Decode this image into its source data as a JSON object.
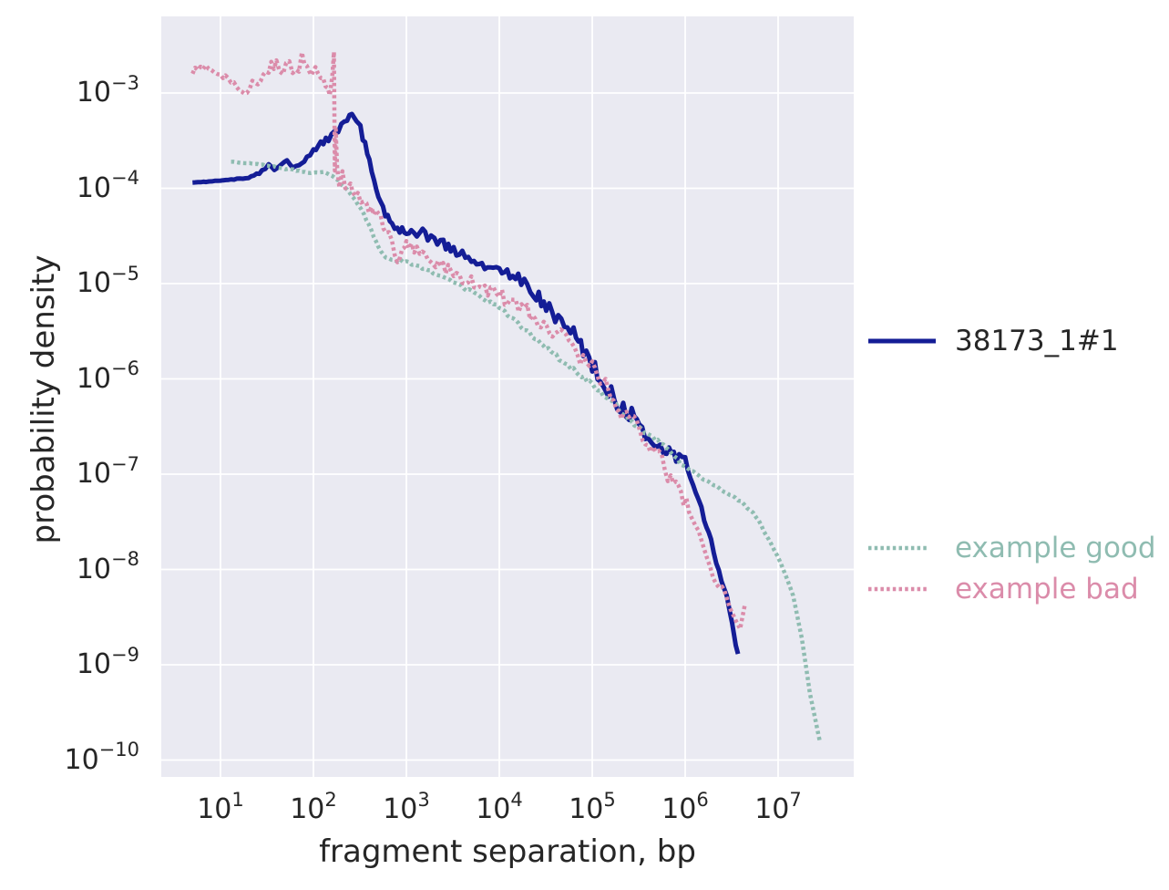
{
  "figure": {
    "xlabel": "fragment separation, bp",
    "ylabel": "probability density",
    "tick_base": "10",
    "background": "#ffffff",
    "plot_background": "#eaeaf2",
    "grid_color": "#ffffff",
    "text_color": "#262626"
  },
  "legend_main": {
    "label": "38173_1#1",
    "color": "#141d96",
    "style": "solid"
  },
  "legend_examples": [
    {
      "label": "example good",
      "color": "#8fbcb1",
      "style": "dotted"
    },
    {
      "label": "example bad",
      "color": "#db8caa",
      "style": "dotted"
    }
  ],
  "chart_data": {
    "type": "line",
    "xscale": "log",
    "yscale": "log",
    "xlabel": "fragment separation, bp",
    "ylabel": "probability density",
    "xlim": [
      2.3,
      65000000
    ],
    "ylim": [
      6.6e-11,
      0.0064
    ],
    "grid": true,
    "legend_position": "right",
    "x_tick_exponents": [
      1,
      2,
      3,
      4,
      5,
      6,
      7
    ],
    "y_tick_exponents": [
      -3,
      -4,
      -5,
      -6,
      -7,
      -8,
      -9,
      -10
    ],
    "series": [
      {
        "name": "38173_1#1",
        "color": "#141d96",
        "style": "solid",
        "line_width": 5,
        "points": [
          [
            5,
            0.000115,
            0
          ],
          [
            7,
            0.000117,
            0.005
          ],
          [
            10,
            0.00012,
            0.005
          ],
          [
            14,
            0.000125,
            0.01
          ],
          [
            20,
            0.00013,
            0.01
          ],
          [
            28,
            0.00015,
            0.02
          ],
          [
            33,
            0.000175,
            0.02
          ],
          [
            38,
            0.000155,
            0.02
          ],
          [
            45,
            0.000185,
            0.02
          ],
          [
            52,
            0.000195,
            0.02
          ],
          [
            60,
            0.00016,
            0.02
          ],
          [
            70,
            0.00018,
            0.02
          ],
          [
            85,
            0.00021,
            0.03
          ],
          [
            100,
            0.00025,
            0.03
          ],
          [
            120,
            0.0003,
            0.04
          ],
          [
            145,
            0.00034,
            0.05
          ],
          [
            170,
            0.00039,
            0.05
          ],
          [
            200,
            0.00046,
            0.06
          ],
          [
            230,
            0.00053,
            0.05
          ],
          [
            260,
            0.00055,
            0.05
          ],
          [
            290,
            0.00049,
            0.05
          ],
          [
            320,
            0.00042,
            0.04
          ],
          [
            360,
            0.00029,
            0.04
          ],
          [
            400,
            0.00019,
            0.03
          ],
          [
            450,
            0.00012,
            0.03
          ],
          [
            500,
            8.5e-05,
            0.03
          ],
          [
            560,
            6.2e-05,
            0.03
          ],
          [
            630,
            4.9e-05,
            0.04
          ],
          [
            700,
            4.3e-05,
            0.04
          ],
          [
            800,
            3.9e-05,
            0.05
          ],
          [
            900,
            3.7e-05,
            0.05
          ],
          [
            1000,
            3.6e-05,
            0.05
          ],
          [
            1200,
            3.4e-05,
            0.06
          ],
          [
            1400,
            3.5e-05,
            0.06
          ],
          [
            1700,
            3.1e-05,
            0.05
          ],
          [
            2000,
            2.9e-05,
            0.05
          ],
          [
            2500,
            2.6e-05,
            0.05
          ],
          [
            3000,
            2.3e-05,
            0.05
          ],
          [
            4000,
            2e-05,
            0.05
          ],
          [
            5000,
            1.75e-05,
            0.05
          ],
          [
            6500,
            1.6e-05,
            0.05
          ],
          [
            8000,
            1.55e-05,
            0.05
          ],
          [
            10000,
            1.5e-05,
            0.05
          ],
          [
            13000,
            1.3e-05,
            0.06
          ],
          [
            16000,
            1.15e-05,
            0.06
          ],
          [
            20000,
            1e-05,
            0.06
          ],
          [
            25000,
            7.5e-06,
            0.07
          ],
          [
            32000,
            5.8e-06,
            0.07
          ],
          [
            40000,
            4.4e-06,
            0.07
          ],
          [
            50000,
            3.6e-06,
            0.08
          ],
          [
            63000,
            3e-06,
            0.08
          ],
          [
            80000,
            2e-06,
            0.08
          ],
          [
            100000,
            1.4e-06,
            0.08
          ],
          [
            130000,
            9e-07,
            0.09
          ],
          [
            160000,
            6.8e-07,
            0.09
          ],
          [
            200000,
            5.2e-07,
            0.09
          ],
          [
            250000,
            4.4e-07,
            0.09
          ],
          [
            320000,
            3.2e-07,
            0.08
          ],
          [
            400000,
            2.6e-07,
            0.08
          ],
          [
            500000,
            1.9e-07,
            0.08
          ],
          [
            630000,
            1.7e-07,
            0.07
          ],
          [
            800000,
            1.55e-07,
            0.06
          ],
          [
            1000000,
            1.45e-07,
            0.05
          ],
          [
            1300000,
            6.9e-08,
            0.04
          ],
          [
            1600000,
            3.3e-08,
            0.03
          ],
          [
            1900000,
            2e-08,
            0.02
          ],
          [
            2300000,
            9.5e-09,
            0.02
          ],
          [
            2800000,
            5.3e-09,
            0.01
          ],
          [
            3200000,
            2.7e-09,
            0.01
          ],
          [
            3500000,
            1.6e-09,
            0
          ],
          [
            3700000,
            1.3e-09,
            0
          ]
        ]
      },
      {
        "name": "example good",
        "color": "#8fbcb1",
        "style": "dotted",
        "line_width": 4.5,
        "points": [
          [
            13,
            0.00019,
            0.005
          ],
          [
            18,
            0.000185,
            0.005
          ],
          [
            25,
            0.00018,
            0.005
          ],
          [
            35,
            0.00017,
            0.008
          ],
          [
            50,
            0.00016,
            0.008
          ],
          [
            70,
            0.000152,
            0.008
          ],
          [
            100,
            0.000145,
            0.01
          ],
          [
            130,
            0.000148,
            0.01
          ],
          [
            160,
            0.000135,
            0.01
          ],
          [
            200,
            0.00011,
            0.01
          ],
          [
            250,
            8.8e-05,
            0.01
          ],
          [
            300,
            6.8e-05,
            0.01
          ],
          [
            350,
            5.3e-05,
            0.01
          ],
          [
            420,
            3.6e-05,
            0.01
          ],
          [
            500,
            2.4e-05,
            0.01
          ],
          [
            600,
            1.9e-05,
            0.01
          ],
          [
            800,
            1.75e-05,
            0.015
          ],
          [
            1000,
            1.7e-05,
            0.015
          ],
          [
            1300,
            1.55e-05,
            0.015
          ],
          [
            1700,
            1.4e-05,
            0.015
          ],
          [
            2200,
            1.2e-05,
            0.015
          ],
          [
            3400,
            1e-05,
            0.02
          ],
          [
            5400,
            8e-06,
            0.02
          ],
          [
            7500,
            6.6e-06,
            0.02
          ],
          [
            10000,
            5.6e-06,
            0.02
          ],
          [
            15000,
            4e-06,
            0.02
          ],
          [
            26000,
            2.5e-06,
            0.025
          ],
          [
            41000,
            1.75e-06,
            0.025
          ],
          [
            63000,
            1.26e-06,
            0.025
          ],
          [
            100000,
            8.7e-07,
            0.025
          ],
          [
            160000,
            5.9e-07,
            0.025
          ],
          [
            250000,
            3.7e-07,
            0.02
          ],
          [
            390000,
            2.6e-07,
            0.02
          ],
          [
            580000,
            2.1e-07,
            0.02
          ],
          [
            890000,
            1.3e-07,
            0.02
          ],
          [
            1300000,
            1e-07,
            0.015
          ],
          [
            1900000,
            8e-08,
            0.015
          ],
          [
            2800000,
            6.3e-08,
            0.01
          ],
          [
            4000000,
            5.2e-08,
            0.01
          ],
          [
            5800000,
            3.6e-08,
            0.01
          ],
          [
            8500000,
            1.8e-08,
            0.008
          ],
          [
            9800000,
            1.4e-08,
            0.005
          ],
          [
            12300000,
            8.3e-09,
            0.005
          ],
          [
            14500000,
            5.3e-09,
            0
          ],
          [
            18000000,
            1.9e-09,
            0
          ],
          [
            22000000,
            5e-10,
            0
          ],
          [
            28000000,
            1.6e-10,
            0
          ]
        ]
      },
      {
        "name": "example bad",
        "color": "#db8caa",
        "style": "dotted",
        "line_width": 4.5,
        "points": [
          [
            5,
            0.0017,
            0.03
          ],
          [
            6.5,
            0.0019,
            0.03
          ],
          [
            8,
            0.00175,
            0.03
          ],
          [
            10,
            0.0016,
            0.04
          ],
          [
            12,
            0.0014,
            0.04
          ],
          [
            15,
            0.0012,
            0.04
          ],
          [
            18,
            0.00105,
            0.04
          ],
          [
            22,
            0.0012,
            0.05
          ],
          [
            27,
            0.00145,
            0.05
          ],
          [
            33,
            0.0018,
            0.06
          ],
          [
            40,
            0.0021,
            0.06
          ],
          [
            47,
            0.0016,
            0.06
          ],
          [
            55,
            0.0022,
            0.06
          ],
          [
            65,
            0.0015,
            0.07
          ],
          [
            75,
            0.0023,
            0.07
          ],
          [
            85,
            0.0018,
            0.07
          ],
          [
            95,
            0.00135,
            0.06
          ],
          [
            105,
            0.00185,
            0.06
          ],
          [
            120,
            0.0015,
            0.06
          ],
          [
            135,
            0.00115,
            0.05
          ],
          [
            150,
            0.0009,
            0.05
          ],
          [
            160,
            0.0015,
            0.02
          ],
          [
            166,
            0.0027,
            0.02
          ],
          [
            170,
            0.00016,
            0.02
          ],
          [
            174,
            0.00043,
            0.02
          ],
          [
            180,
            0.00018,
            0.03
          ],
          [
            190,
            0.000105,
            0.04
          ],
          [
            205,
            0.00015,
            0.05
          ],
          [
            220,
            0.00011,
            0.05
          ],
          [
            250,
            0.000105,
            0.05
          ],
          [
            300,
            8.5e-05,
            0.05
          ],
          [
            350,
            7e-05,
            0.05
          ],
          [
            420,
            5.8e-05,
            0.05
          ],
          [
            500,
            5e-05,
            0.05
          ],
          [
            600,
            3.8e-05,
            0.05
          ],
          [
            700,
            2.6e-05,
            0.05
          ],
          [
            800,
            1.7e-05,
            0.04
          ],
          [
            900,
            2.2e-05,
            0.04
          ],
          [
            1000,
            2.6e-05,
            0.05
          ],
          [
            1300,
            2.2e-05,
            0.06
          ],
          [
            1700,
            1.9e-05,
            0.06
          ],
          [
            2200,
            1.6e-05,
            0.06
          ],
          [
            3000,
            1.35e-05,
            0.06
          ],
          [
            4000,
            1.15e-05,
            0.07
          ],
          [
            5000,
            1.05e-05,
            0.07
          ],
          [
            7000,
            8.8e-06,
            0.08
          ],
          [
            10000,
            7.8e-06,
            0.08
          ],
          [
            14000,
            6.4e-06,
            0.09
          ],
          [
            20000,
            5.2e-06,
            0.09
          ],
          [
            28000,
            4.2e-06,
            0.1
          ],
          [
            40000,
            3.2e-06,
            0.1
          ],
          [
            60000,
            2.1e-06,
            0.1
          ],
          [
            80000,
            1.6e-06,
            0.1
          ],
          [
            100000,
            1.25e-06,
            0.11
          ],
          [
            130000,
            8.5e-07,
            0.12
          ],
          [
            170000,
            6.5e-07,
            0.12
          ],
          [
            220000,
            4.5e-07,
            0.12
          ],
          [
            280000,
            3.3e-07,
            0.12
          ],
          [
            350000,
            2.5e-07,
            0.11
          ],
          [
            450000,
            1.8e-07,
            0.11
          ],
          [
            560000,
            1.3e-07,
            0.1
          ],
          [
            700000,
            9e-08,
            0.1
          ],
          [
            900000,
            6e-08,
            0.09
          ],
          [
            1100000,
            4.5e-08,
            0.08
          ],
          [
            1300000,
            3.2e-08,
            0.07
          ],
          [
            1600000,
            1.5e-08,
            0.05
          ],
          [
            2000000,
            8e-09,
            0.04
          ],
          [
            2500000,
            6.5e-09,
            0.03
          ],
          [
            3000000,
            4.2e-09,
            0.02
          ],
          [
            3500000,
            2.8e-09,
            0.02
          ],
          [
            3900000,
            2.4e-09,
            0.01
          ],
          [
            4400000,
            4.3e-09,
            0
          ]
        ]
      }
    ]
  }
}
